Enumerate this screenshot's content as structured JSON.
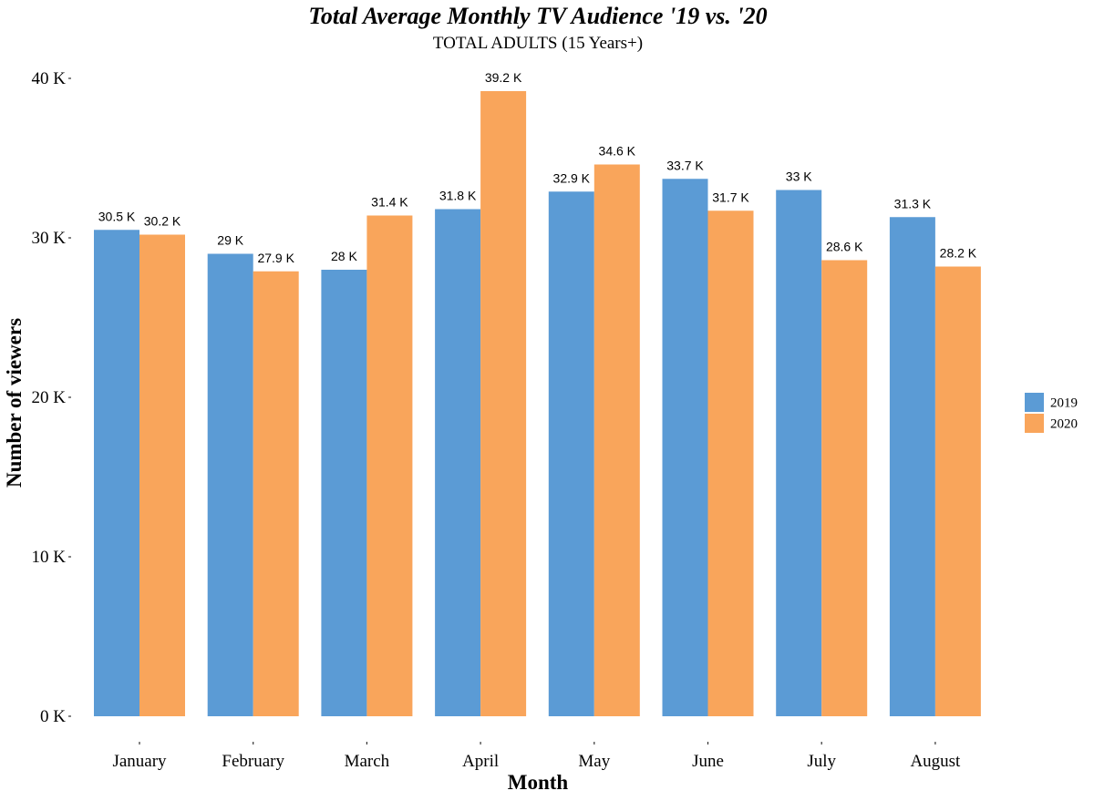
{
  "chart_data": {
    "type": "bar",
    "title": "Total Average Monthly TV Audience '19 vs. '20",
    "subtitle": "TOTAL ADULTS (15 Years+)",
    "xlabel": "Month",
    "ylabel": "Number of viewers",
    "categories": [
      "January",
      "February",
      "March",
      "April",
      "May",
      "June",
      "July",
      "August"
    ],
    "series": [
      {
        "name": "2019",
        "color": "#5b9bd5",
        "values": [
          30.5,
          29,
          28,
          31.8,
          32.9,
          33.7,
          33,
          31.3
        ],
        "labels": [
          "30.5 K",
          "29 K",
          "28 K",
          "31.8 K",
          "32.9 K",
          "33.7 K",
          "33 K",
          "31.3 K"
        ]
      },
      {
        "name": "2020",
        "color": "#f9a55b",
        "values": [
          30.2,
          27.9,
          31.4,
          39.2,
          34.6,
          31.7,
          28.6,
          28.2
        ],
        "labels": [
          "30.2 K",
          "27.9 K",
          "31.4 K",
          "39.2 K",
          "34.6 K",
          "31.7 K",
          "28.6 K",
          "28.2 K"
        ]
      }
    ],
    "unit": "K",
    "ylim": [
      0,
      40
    ],
    "yticks": [
      0,
      10,
      20,
      30,
      40
    ],
    "ytick_labels": [
      "0 K",
      "10 K",
      "20 K",
      "30 K",
      "40 K"
    ],
    "grid": false,
    "legend_position": "right"
  }
}
